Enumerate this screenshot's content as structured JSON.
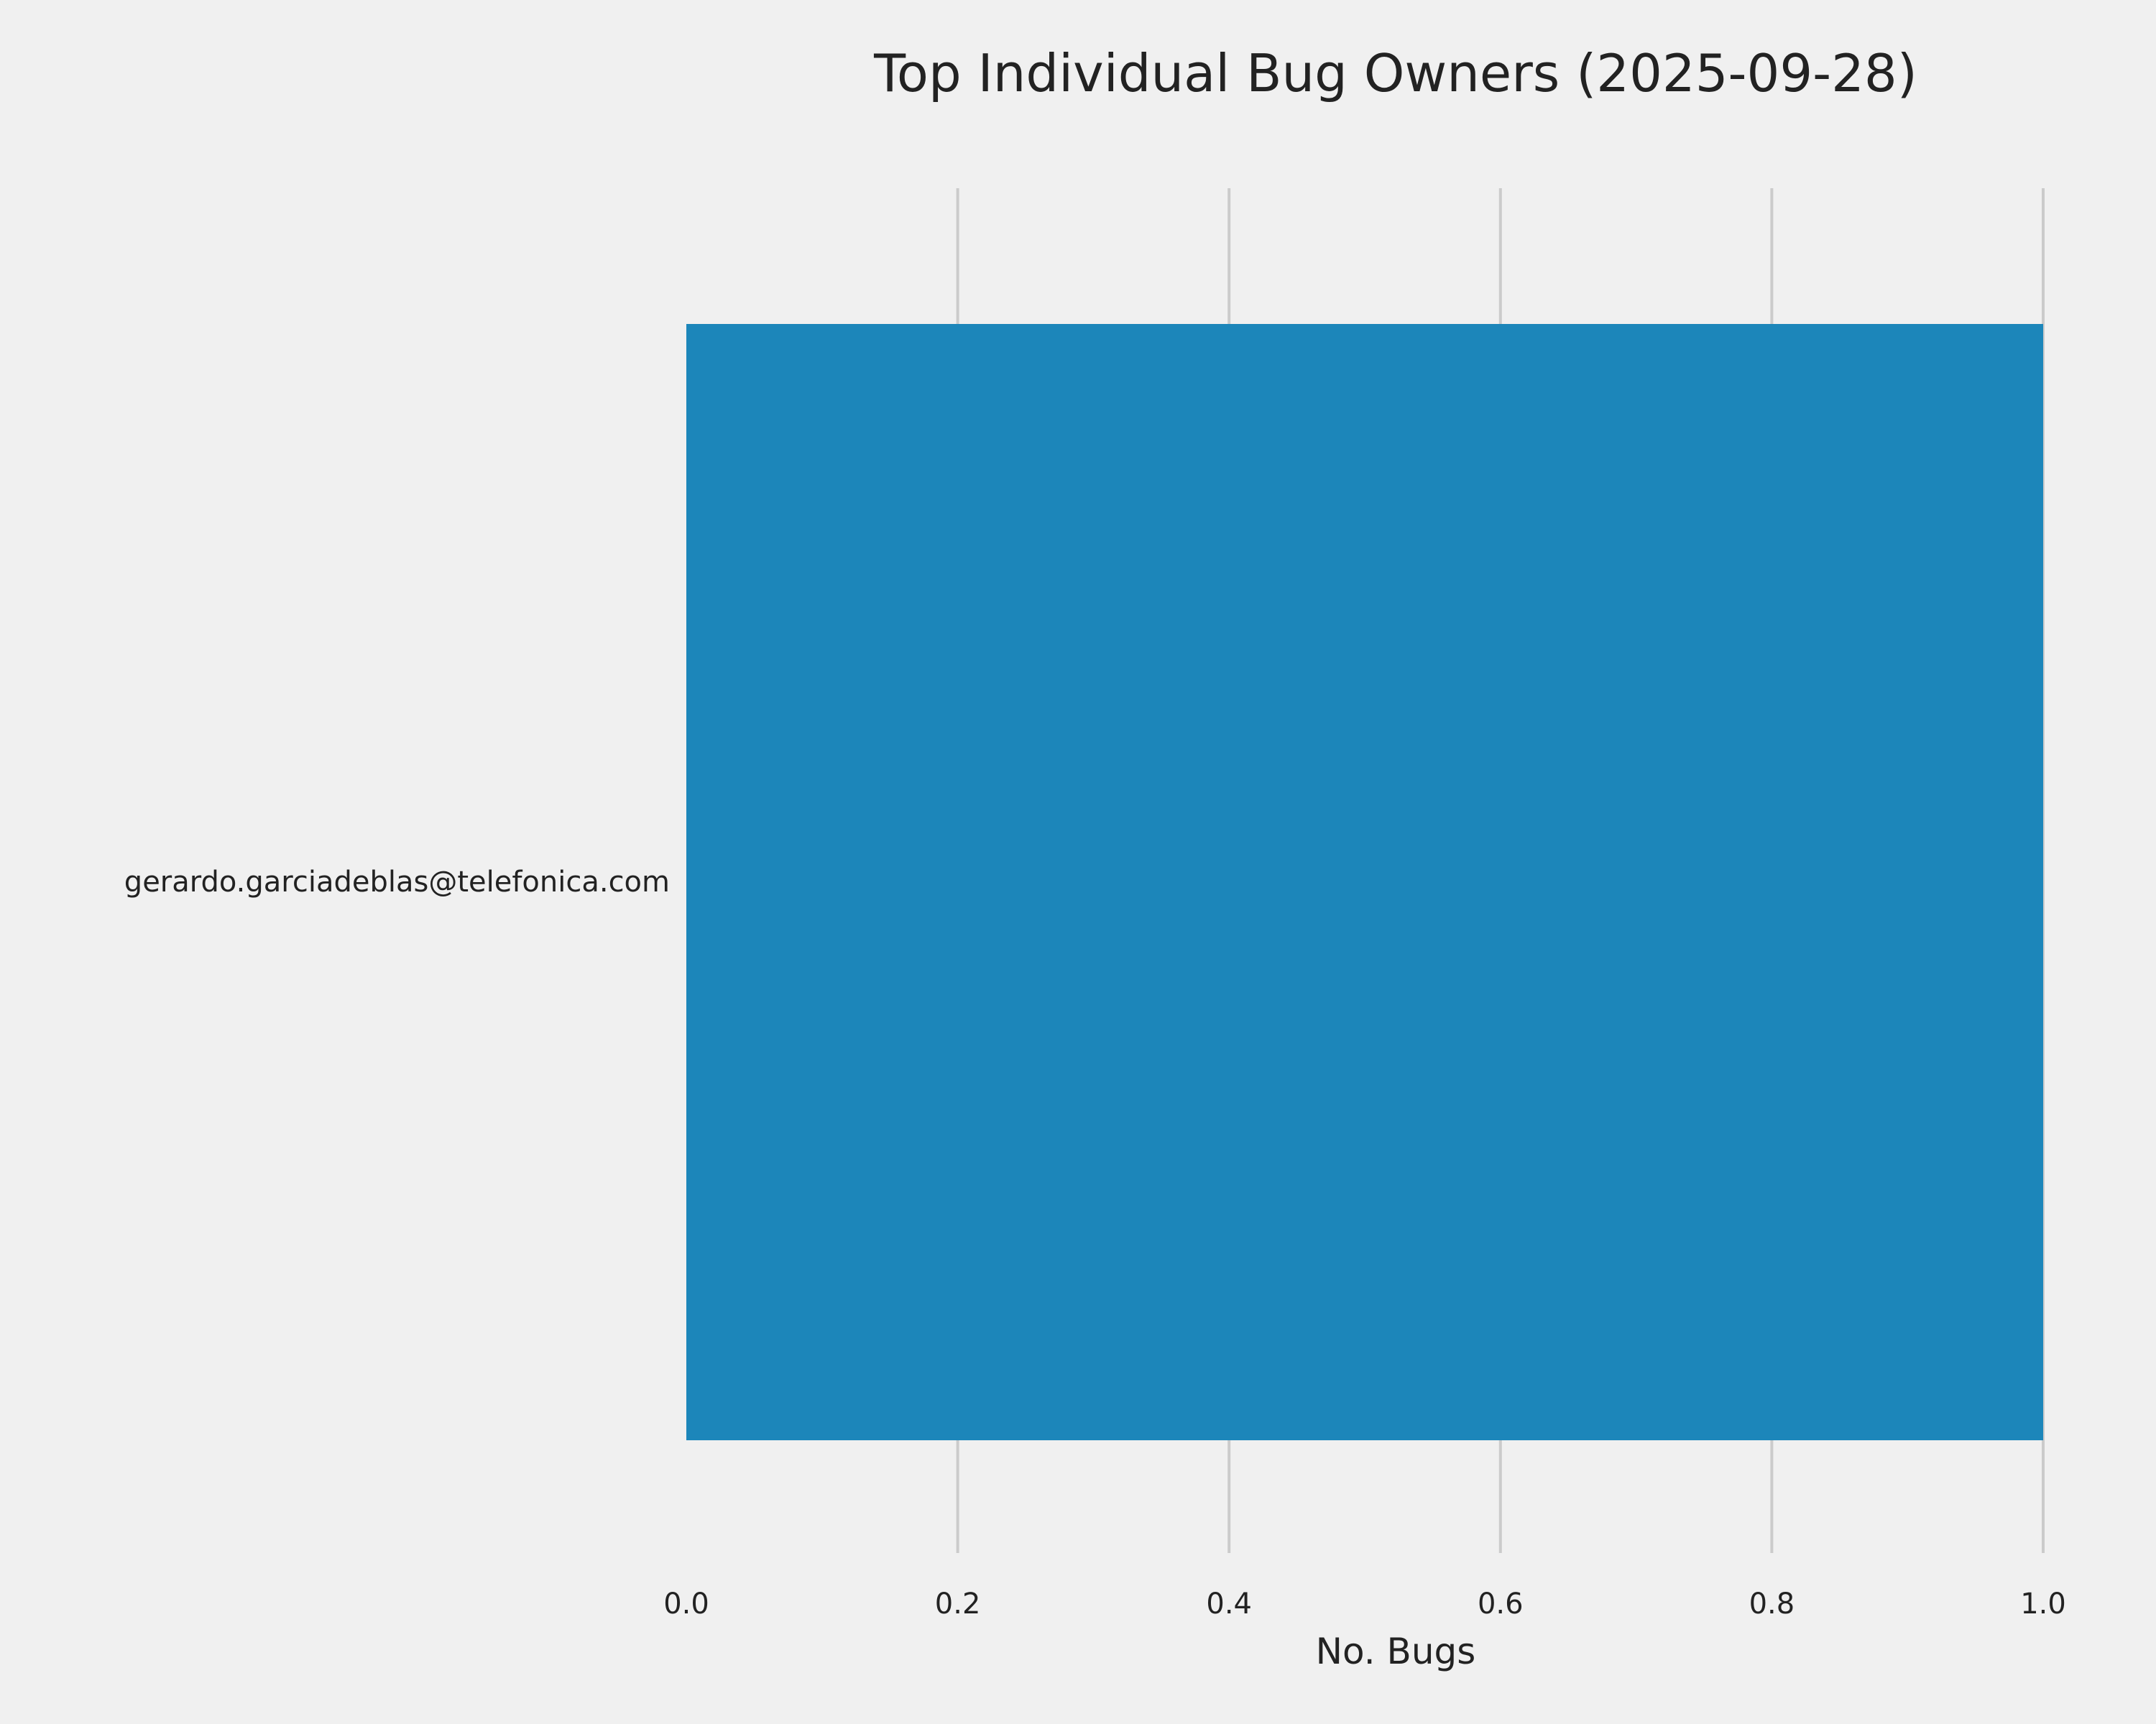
{
  "chart_data": {
    "type": "bar",
    "orientation": "horizontal",
    "title": "Top Individual Bug Owners (2025-09-28)",
    "xlabel": "No. Bugs",
    "ylabel": "",
    "categories": [
      "gerardo.garciadeblas@telefonica.com"
    ],
    "values": [
      1
    ],
    "xlim": [
      0,
      1
    ],
    "xticks": [
      "0.0",
      "0.2",
      "0.4",
      "0.6",
      "0.8",
      "1.0"
    ],
    "grid": true,
    "bar_color": "#1c86ba",
    "background": "#f0f0f0"
  }
}
